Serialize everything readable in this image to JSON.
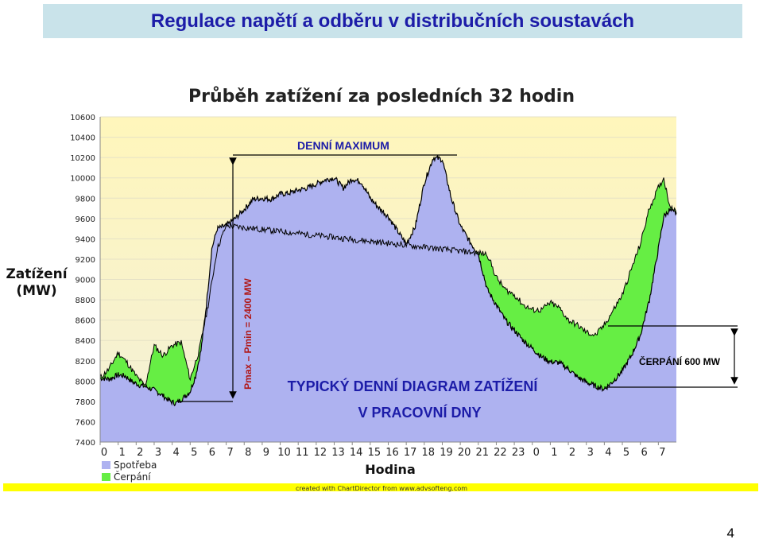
{
  "slide": {
    "title": "Regulace napětí a odběru v distribučních soustavách",
    "page_number": "4"
  },
  "chart_data": {
    "type": "area",
    "title": "Průběh zatížení za posledních 32 hodin",
    "xlabel": "Hodina",
    "ylabel": "Zatížení (MW)",
    "ylim": [
      7400,
      10600
    ],
    "yticks": [
      7400,
      7600,
      7800,
      8000,
      8200,
      8400,
      8600,
      8800,
      9000,
      9200,
      9400,
      9600,
      9800,
      10000,
      10200,
      10400,
      10600
    ],
    "xlim": [
      0,
      32
    ],
    "xtick_labels": [
      "0",
      "1",
      "2",
      "3",
      "4",
      "5",
      "6",
      "7",
      "8",
      "9",
      "10",
      "11",
      "12",
      "13",
      "14",
      "15",
      "16",
      "17",
      "18",
      "19",
      "20",
      "21",
      "22",
      "23",
      "0",
      "1",
      "2",
      "3",
      "4",
      "5",
      "6",
      "7"
    ],
    "credit": "created with ChartDirector from www.advsofteng.com",
    "colors": {
      "spotreba": "#aeb2f0",
      "cerpani": "#66ee44",
      "line": "#000000",
      "plot_top": "#fff6bb"
    },
    "series": [
      {
        "name": "Spotřeba",
        "x": [
          0,
          0.5,
          1,
          1.4,
          1.8,
          2.2,
          2.6,
          3,
          3.3,
          3.6,
          3.9,
          4.2,
          4.6,
          5,
          5.3,
          5.6,
          5.9,
          6.2,
          6.5,
          7,
          7.5,
          8,
          8.5,
          9,
          9.5,
          10,
          10.5,
          11,
          11.5,
          12,
          12.5,
          13,
          13.5,
          14,
          14.5,
          15,
          15.5,
          16,
          16.5,
          17,
          17.5,
          18,
          18.5,
          19,
          19.5,
          20,
          20.5,
          21,
          21.5,
          22,
          22.5,
          23,
          23.5,
          24,
          24.5,
          25,
          25.5,
          26,
          26.5,
          27,
          27.5,
          28,
          28.5,
          29,
          29.5,
          30,
          30.5,
          31,
          31.3,
          31.6,
          32
        ],
        "values": [
          8030,
          8020,
          8060,
          8050,
          7990,
          7960,
          7940,
          7910,
          7880,
          7840,
          7800,
          7780,
          7830,
          7900,
          8050,
          8300,
          8750,
          9300,
          9500,
          9530,
          9600,
          9690,
          9790,
          9800,
          9790,
          9840,
          9850,
          9880,
          9900,
          9940,
          9980,
          10000,
          9900,
          9990,
          9960,
          9800,
          9700,
          9620,
          9480,
          9350,
          9520,
          9950,
          10200,
          10180,
          9800,
          9530,
          9380,
          9250,
          8900,
          8750,
          8600,
          8500,
          8400,
          8320,
          8240,
          8190,
          8180,
          8120,
          8040,
          7990,
          7950,
          7920,
          8000,
          8100,
          8250,
          8450,
          8800,
          9300,
          9620,
          9680,
          9650
        ]
      },
      {
        "name": "Čerpání",
        "x": [
          0,
          0.5,
          1,
          1.5,
          2,
          2.5,
          3,
          3.5,
          4,
          4.5,
          5,
          5.5,
          6,
          6.5,
          7,
          21.5,
          22,
          22.5,
          23,
          23.5,
          24,
          24.5,
          25,
          25.5,
          26,
          26.5,
          27,
          27.5,
          28,
          28.5,
          29,
          29.5,
          30,
          30.5,
          31,
          31.3,
          31.6,
          32
        ],
        "values": [
          8030,
          8120,
          8280,
          8180,
          8050,
          7950,
          8350,
          8250,
          8350,
          8380,
          8020,
          8300,
          8750,
          9300,
          9530,
          9250,
          9020,
          8900,
          8850,
          8750,
          8700,
          8700,
          8770,
          8720,
          8600,
          8550,
          8480,
          8450,
          8550,
          8700,
          8850,
          9100,
          9350,
          9700,
          9900,
          10000,
          9750,
          9650
        ]
      }
    ],
    "annotations": {
      "daily_max": "DENNÍ MAXIMUM",
      "pmax_pmin": "Pmax – Pmin = 2400 MW",
      "pumping": "ČERPÁNÍ  600 MW",
      "caption_line1": "TYPICKÝ DENNÍ DIAGRAM ZATÍŽENÍ",
      "caption_line2": "V PRACOVNÍ DNY"
    }
  }
}
